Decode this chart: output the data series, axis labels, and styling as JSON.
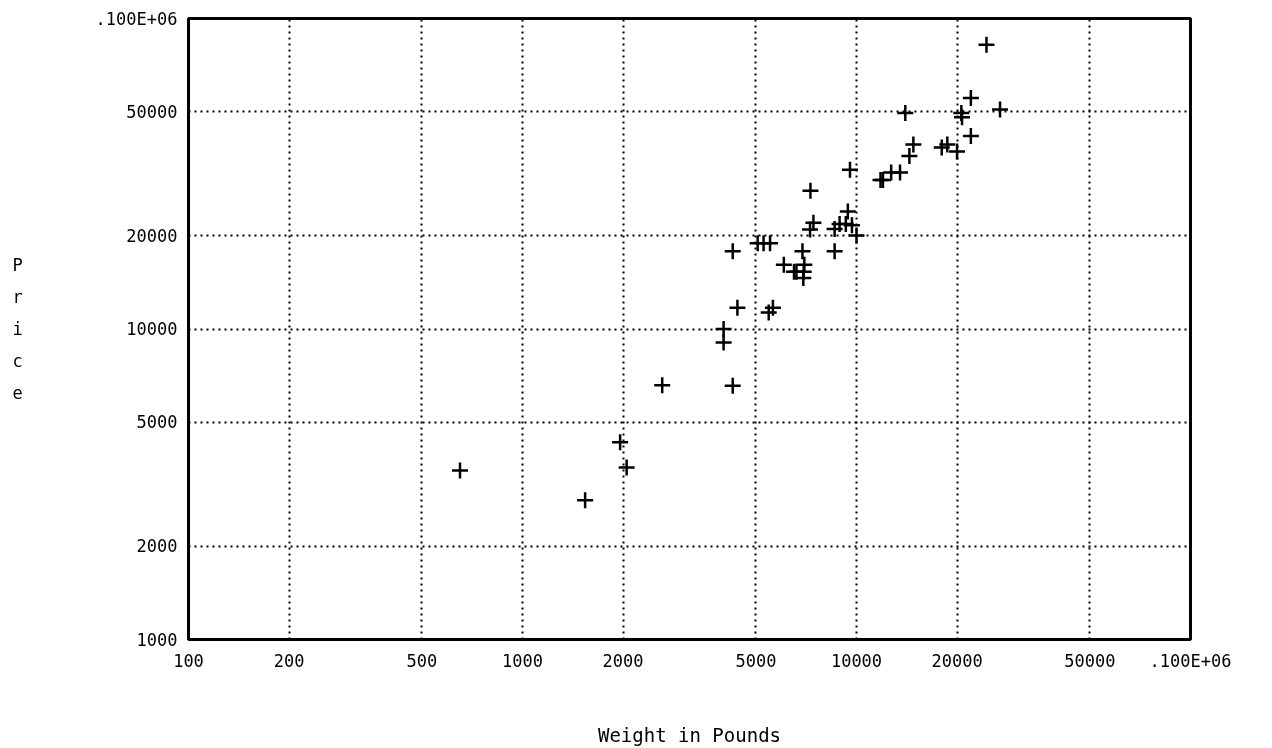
{
  "chart_data": {
    "type": "scatter",
    "xlabel": "Weight in Pounds",
    "ylabel": "Price",
    "log": "xy",
    "grid": true,
    "marker": "cross",
    "color": "#000000",
    "xlim": [
      100,
      100000
    ],
    "ylim": [
      1000,
      100000
    ],
    "xticks": [
      100,
      200,
      500,
      1000,
      2000,
      5000,
      10000,
      20000,
      50000,
      {
        "value": 100000,
        "label": ".100E+06"
      }
    ],
    "yticks": [
      1000,
      2000,
      5000,
      10000,
      20000,
      50000,
      {
        "value": 100000,
        "label": ".100E+06"
      }
    ],
    "x": [
      650,
      1540,
      1960,
      2050,
      2620,
      4000,
      4000,
      4260,
      4260,
      4400,
      5060,
      5270,
      5510,
      5460,
      5620,
      6060,
      6500,
      6610,
      6890,
      6980,
      6930,
      6950,
      7260,
      7430,
      7280,
      8600,
      8600,
      8900,
      9290,
      9420,
      9560,
      9690,
      10000,
      11800,
      12000,
      12700,
      13500,
      14000,
      14400,
      14800,
      18000,
      18700,
      20000,
      20600,
      20700,
      22000,
      22000,
      24500,
      26900
    ],
    "values": [
      3500,
      2810,
      4320,
      3580,
      6590,
      10000,
      9040,
      6570,
      17800,
      11700,
      18900,
      18900,
      18900,
      11300,
      11700,
      16100,
      15300,
      15300,
      17800,
      16100,
      14600,
      15300,
      20900,
      22000,
      27900,
      21000,
      17800,
      21800,
      21800,
      23900,
      32600,
      21600,
      20000,
      30200,
      30200,
      31900,
      31900,
      49600,
      36100,
      39300,
      38400,
      39300,
      37300,
      49600,
      48100,
      55500,
      41800,
      82300,
      50900
    ]
  }
}
